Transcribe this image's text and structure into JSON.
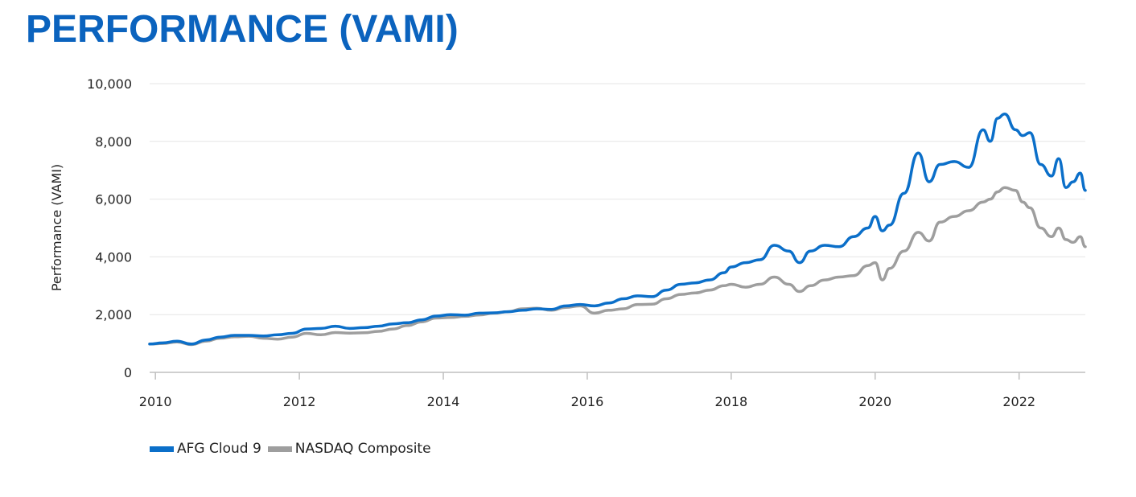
{
  "page": {
    "title": "PERFORMANCE (VAMI)"
  },
  "chart_data": {
    "type": "line",
    "title": "PERFORMANCE (VAMI)",
    "xlabel": "",
    "ylabel": "Performance (VAMI)",
    "xlim": [
      2009.92,
      2022.92
    ],
    "ylim": [
      0,
      10000
    ],
    "x_ticks": [
      "2010",
      "2012",
      "2014",
      "2016",
      "2018",
      "2020",
      "2022"
    ],
    "y_ticks": [
      "0",
      "2,000",
      "4,000",
      "6,000",
      "8,000",
      "10,000"
    ],
    "grid": true,
    "legend_position": "bottom-left",
    "x": [
      2009.92,
      2010.1,
      2010.3,
      2010.5,
      2010.7,
      2010.9,
      2011.1,
      2011.3,
      2011.5,
      2011.7,
      2011.9,
      2012.1,
      2012.3,
      2012.5,
      2012.7,
      2012.9,
      2013.1,
      2013.3,
      2013.5,
      2013.7,
      2013.9,
      2014.1,
      2014.3,
      2014.5,
      2014.7,
      2014.9,
      2015.1,
      2015.3,
      2015.5,
      2015.7,
      2015.9,
      2016.1,
      2016.3,
      2016.5,
      2016.7,
      2016.9,
      2017.1,
      2017.3,
      2017.5,
      2017.7,
      2017.9,
      2018.0,
      2018.2,
      2018.4,
      2018.6,
      2018.8,
      2018.95,
      2019.1,
      2019.3,
      2019.5,
      2019.7,
      2019.9,
      2020.0,
      2020.1,
      2020.2,
      2020.4,
      2020.6,
      2020.75,
      2020.9,
      2021.1,
      2021.3,
      2021.5,
      2021.6,
      2021.7,
      2021.8,
      2021.95,
      2022.05,
      2022.15,
      2022.3,
      2022.45,
      2022.55,
      2022.65,
      2022.75,
      2022.85,
      2022.92
    ],
    "series": [
      {
        "name": "AFG Cloud 9",
        "color": "#0b6fc9",
        "values": [
          980,
          1020,
          1080,
          980,
          1120,
          1220,
          1280,
          1280,
          1260,
          1300,
          1350,
          1500,
          1520,
          1600,
          1520,
          1550,
          1600,
          1680,
          1720,
          1820,
          1950,
          2000,
          1980,
          2050,
          2060,
          2100,
          2150,
          2200,
          2180,
          2300,
          2350,
          2300,
          2400,
          2550,
          2650,
          2620,
          2850,
          3050,
          3100,
          3200,
          3450,
          3650,
          3800,
          3900,
          4400,
          4200,
          3800,
          4200,
          4400,
          4350,
          4700,
          5000,
          5400,
          4900,
          5100,
          6200,
          7600,
          6600,
          7200,
          7300,
          7100,
          8400,
          8000,
          8800,
          8950,
          8400,
          8200,
          8300,
          7200,
          6800,
          7400,
          6400,
          6600,
          6900,
          6300
        ]
      },
      {
        "name": "NASDAQ Composite",
        "color": "#9e9e9e",
        "values": [
          980,
          1000,
          1050,
          960,
          1080,
          1180,
          1230,
          1250,
          1180,
          1150,
          1220,
          1350,
          1300,
          1380,
          1360,
          1370,
          1420,
          1500,
          1620,
          1750,
          1880,
          1900,
          1940,
          1990,
          2050,
          2100,
          2200,
          2220,
          2150,
          2250,
          2300,
          2050,
          2150,
          2200,
          2350,
          2360,
          2550,
          2700,
          2750,
          2850,
          3000,
          3050,
          2950,
          3050,
          3300,
          3050,
          2800,
          3000,
          3200,
          3300,
          3350,
          3700,
          3800,
          3200,
          3600,
          4200,
          4850,
          4550,
          5200,
          5400,
          5600,
          5900,
          6000,
          6250,
          6400,
          6300,
          5900,
          5700,
          5000,
          4700,
          5000,
          4600,
          4500,
          4700,
          4350
        ]
      }
    ]
  }
}
